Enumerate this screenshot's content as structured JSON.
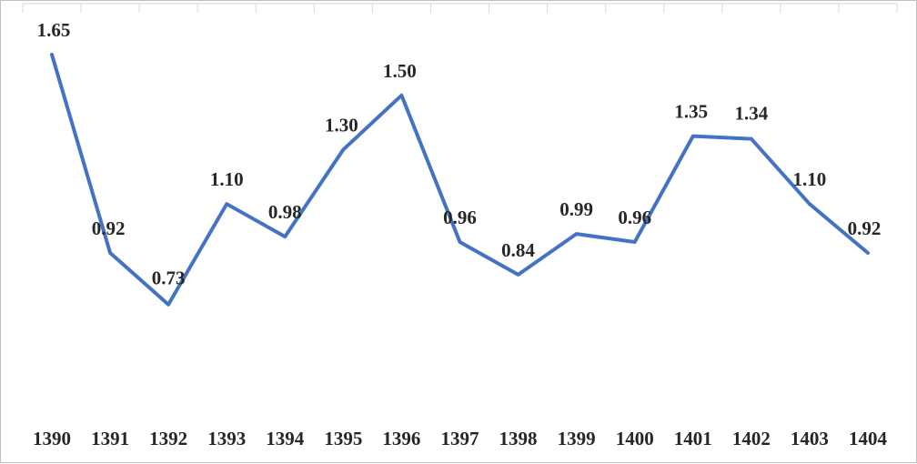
{
  "chart_data": {
    "type": "line",
    "title": "",
    "xlabel": "",
    "ylabel": "",
    "categories": [
      "1390",
      "1391",
      "1392",
      "1393",
      "1394",
      "1395",
      "1396",
      "1397",
      "1398",
      "1399",
      "1400",
      "1401",
      "1402",
      "1403",
      "1404"
    ],
    "series": [
      {
        "values": [
          1.65,
          0.92,
          0.73,
          1.1,
          0.98,
          1.3,
          1.5,
          0.96,
          0.84,
          0.99,
          0.96,
          1.35,
          1.34,
          1.1,
          0.92
        ],
        "labels": [
          "1.65",
          "0.92",
          "0.73",
          "1.10",
          "0.98",
          "1.30",
          "1.50",
          "0.96",
          "0.84",
          "0.99",
          "0.96",
          "1.35",
          "1.34",
          "1.10",
          "0.92"
        ],
        "color": "#4472c4"
      }
    ],
    "grid": false,
    "legend": "none",
    "data_labels": true
  }
}
